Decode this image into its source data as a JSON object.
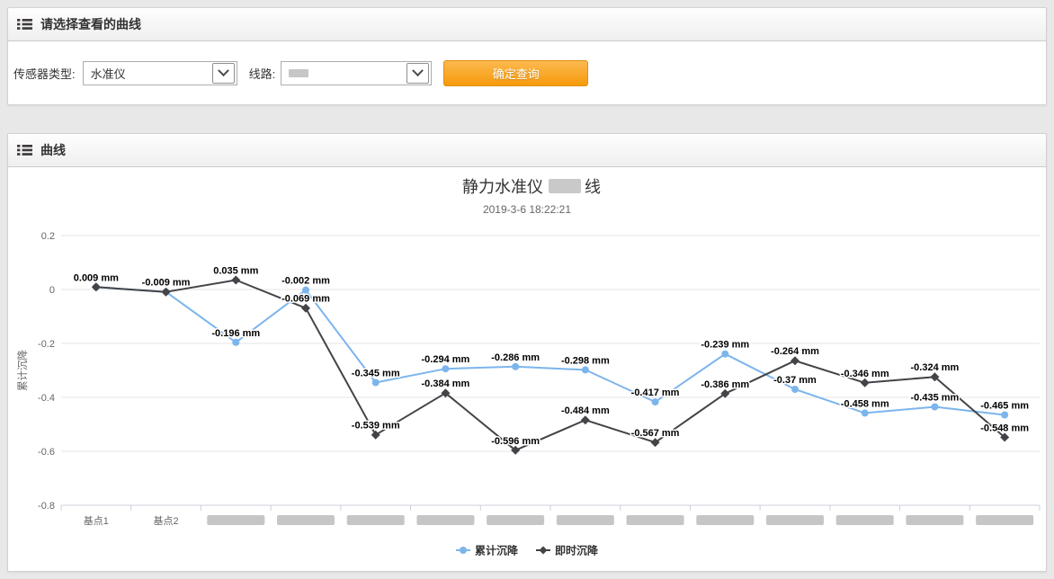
{
  "colors": {
    "accent_orange": "#f79b15",
    "series_blue": "#7cb5ec",
    "series_dark": "#434348",
    "grid": "#e6e6e6",
    "axis_line": "#ccd0d9",
    "axis_text": "#666666",
    "redaction": "#c6c6c6"
  },
  "filter_panel": {
    "title": "请选择查看的曲线",
    "sensor_type_label": "传感器类型:",
    "sensor_type_value": "水准仪",
    "line_label": "线路:",
    "line_value_redacted": true,
    "query_button": "确定查询"
  },
  "chart_panel": {
    "title": "曲线"
  },
  "chart_data": {
    "type": "line",
    "title": {
      "prefix": "静力水准仪 ",
      "redacted_middle": true,
      "suffix": "线"
    },
    "subtitle": "2019-3-6 18:22:21",
    "ylabel": "累计沉降",
    "ylim": [
      -0.8,
      0.2
    ],
    "grid": true,
    "legend_position": "bottom-center",
    "yticks": [
      {
        "v": 0.2,
        "label": "0.2"
      },
      {
        "v": 0,
        "label": "0"
      },
      {
        "v": -0.2,
        "label": "-0.2"
      },
      {
        "v": -0.4,
        "label": "-0.4"
      },
      {
        "v": -0.6,
        "label": "-0.6"
      },
      {
        "v": -0.8,
        "label": "-0.8"
      }
    ],
    "categories": [
      "基点1",
      "基点2",
      null,
      null,
      null,
      null,
      null,
      null,
      null,
      null,
      null,
      null,
      null,
      null
    ],
    "series": [
      {
        "name": "累计沉降",
        "color": "#7cb5ec",
        "marker": "circle",
        "values": [
          0.009,
          -0.009,
          -0.196,
          -0.002,
          -0.345,
          -0.294,
          -0.286,
          -0.298,
          -0.417,
          -0.239,
          -0.37,
          -0.458,
          -0.435,
          -0.465
        ],
        "labels": [
          "0.009 mm",
          "-0.009 mm",
          "-0.196 mm",
          "-0.002 mm",
          "-0.345 mm",
          "-0.294 mm",
          "-0.286 mm",
          "-0.298 mm",
          "-0.417 mm",
          "-0.239 mm",
          "-0.37 mm",
          "-0.458 mm",
          "-0.435 mm",
          "-0.465 mm"
        ]
      },
      {
        "name": "即时沉降",
        "color": "#434348",
        "marker": "diamond",
        "values": [
          0.009,
          -0.009,
          0.035,
          -0.069,
          -0.539,
          -0.384,
          -0.596,
          -0.484,
          -0.567,
          -0.386,
          -0.264,
          -0.346,
          -0.324,
          -0.548
        ],
        "labels": [
          null,
          null,
          "0.035 mm",
          "-0.069 mm",
          "-0.539 mm",
          "-0.384 mm",
          "-0.596 mm",
          "-0.484 mm",
          "-0.567 mm",
          "-0.386 mm",
          "-0.264 mm",
          "-0.346 mm",
          "-0.324 mm",
          "-0.548 mm"
        ]
      }
    ]
  }
}
